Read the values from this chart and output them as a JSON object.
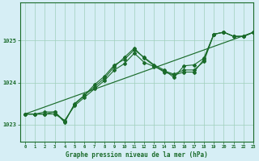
{
  "background_color": "#d6eef5",
  "grid_color": "#9ecfbb",
  "line_color": "#1a6b2a",
  "title": "Graphe pression niveau de la mer (hPa)",
  "xlim": [
    -0.5,
    23
  ],
  "ylim": [
    1022.6,
    1025.9
  ],
  "yticks": [
    1023,
    1024,
    1025
  ],
  "xticks": [
    0,
    1,
    2,
    3,
    4,
    5,
    6,
    7,
    8,
    9,
    10,
    11,
    12,
    13,
    14,
    15,
    16,
    17,
    18,
    19,
    20,
    21,
    22,
    23
  ],
  "line1": [
    1023.25,
    1023.25,
    1023.25,
    1023.25,
    1023.1,
    1023.45,
    1023.65,
    1023.85,
    1024.05,
    1024.3,
    1024.45,
    1024.7,
    1024.48,
    1024.38,
    1024.28,
    1024.2,
    1024.3,
    1024.3,
    1024.5,
    1025.15,
    1025.2,
    1025.1,
    1025.1,
    1025.2
  ],
  "line2": [
    1023.25,
    1023.25,
    1023.3,
    1023.3,
    1023.05,
    1023.5,
    1023.7,
    1023.9,
    1024.1,
    1024.38,
    1024.6,
    1024.82,
    1024.58,
    1024.4,
    1024.25,
    1024.18,
    1024.25,
    1024.25,
    1024.55,
    1025.15,
    1025.2,
    1025.1,
    1025.1,
    1025.2
  ],
  "line3": [
    1023.25,
    1023.25,
    1023.25,
    1023.3,
    1023.08,
    1023.48,
    1023.7,
    1023.95,
    1024.15,
    1024.42,
    1024.55,
    1024.78,
    1024.6,
    1024.42,
    1024.3,
    1024.12,
    1024.4,
    1024.42,
    1024.58,
    1025.15,
    1025.2,
    1025.1,
    1025.1,
    1025.2
  ],
  "trend_x": [
    0,
    23
  ],
  "trend_y": [
    1023.25,
    1025.2
  ]
}
